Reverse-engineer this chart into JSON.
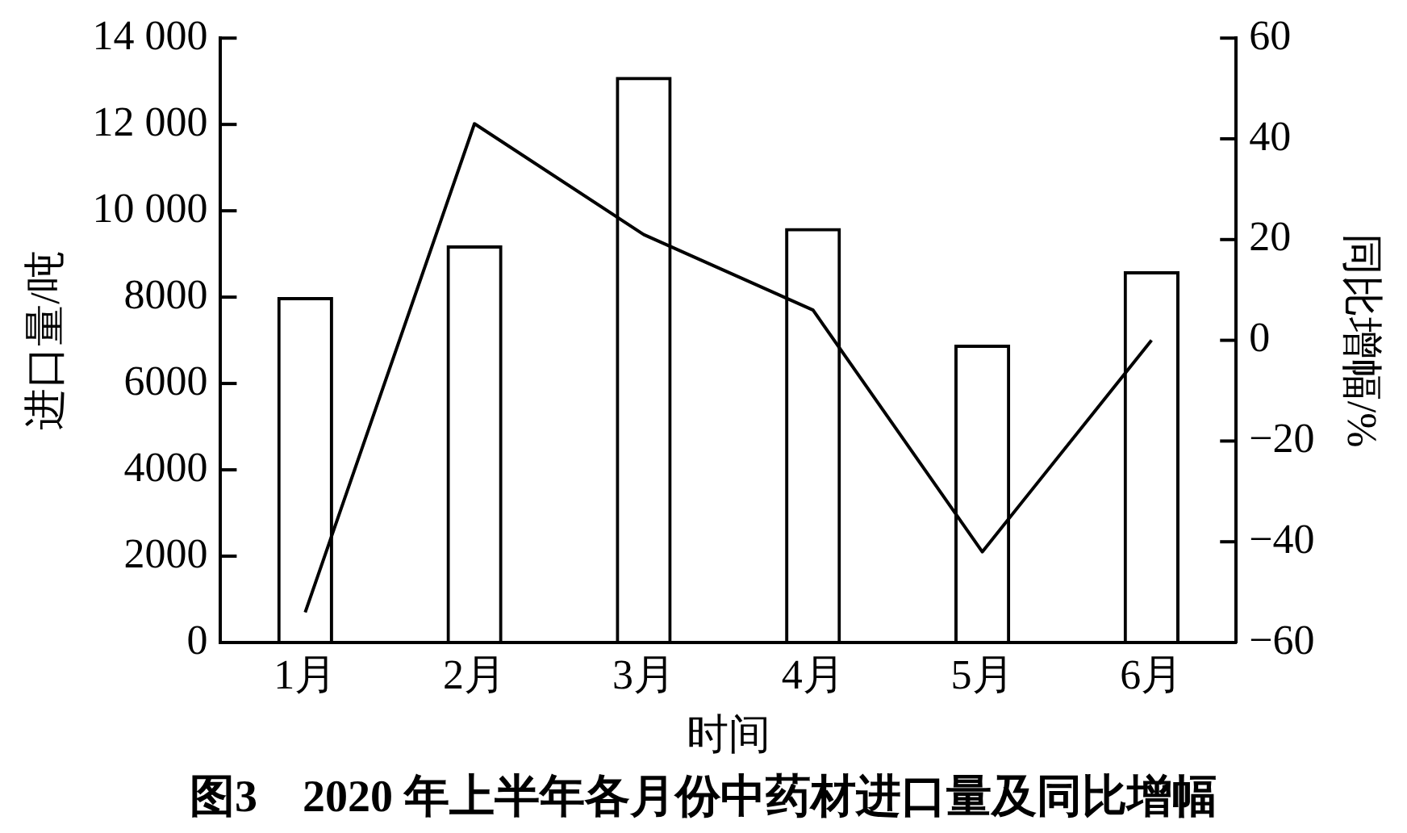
{
  "chart_data": {
    "type": "bar",
    "title": "图3　2020 年上半年各月份中药材进口量及同比增幅",
    "xlabel": "时间",
    "ylabel": "进口量/吨",
    "y2label": "同比增幅/%",
    "categories": [
      "1月",
      "2月",
      "3月",
      "4月",
      "5月",
      "6月"
    ],
    "series": [
      {
        "color": "#000000",
        "values": [
          8000,
          9200,
          13100,
          9600,
          6900,
          8600
        ]
      },
      {
        "type": "line",
        "axis": "y2",
        "color": "#000000",
        "marker": "none",
        "values": [
          -54,
          43,
          21,
          6,
          -42,
          0
        ]
      }
    ],
    "ylim": [
      0,
      14000
    ],
    "yticks": [
      0,
      2000,
      4000,
      6000,
      8000,
      {
        "value": 10000,
        "label": "10 000"
      },
      {
        "value": 12000,
        "label": "12 000"
      },
      {
        "value": 14000,
        "label": "14 000"
      }
    ],
    "y2lim": [
      -60,
      60
    ],
    "y2ticks": [
      {
        "value": -60,
        "label": "−60"
      },
      {
        "value": -40,
        "label": "−40"
      },
      {
        "value": -20,
        "label": "−20"
      },
      0,
      20,
      40,
      60
    ]
  }
}
